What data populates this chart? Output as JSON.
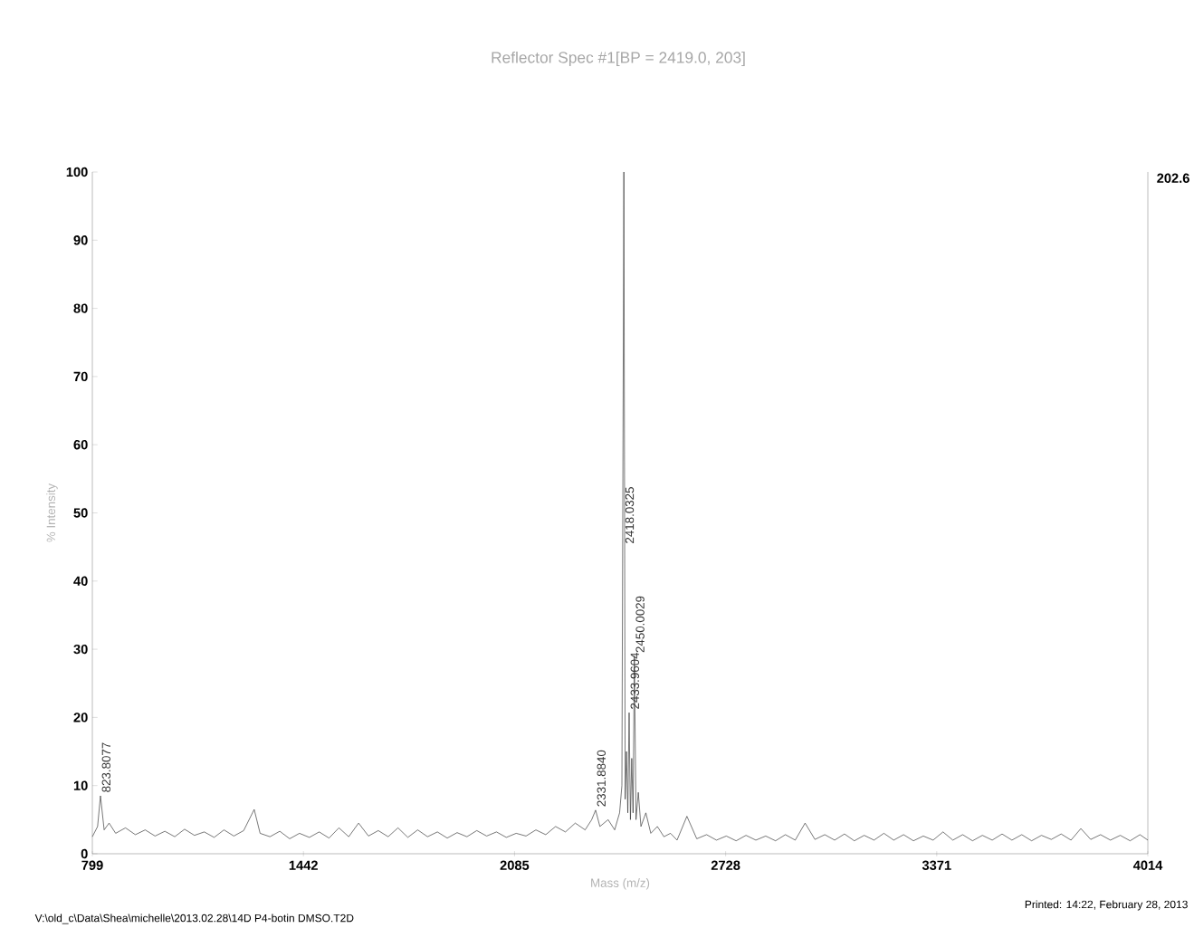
{
  "chart_data": {
    "type": "line",
    "subtitle": "Reflector Spec #1[BP = 2419.0, 203]",
    "xlabel": "Mass (m/z)",
    "ylabel": "% Intensity",
    "color": "#333333",
    "x": [
      799,
      815,
      823.8,
      835,
      850,
      870,
      900,
      930,
      960,
      990,
      1020,
      1050,
      1080,
      1110,
      1140,
      1170,
      1200,
      1230,
      1260,
      1292,
      1310,
      1340,
      1370,
      1400,
      1430,
      1460,
      1490,
      1520,
      1550,
      1580,
      1610,
      1640,
      1670,
      1700,
      1730,
      1760,
      1790,
      1820,
      1850,
      1880,
      1910,
      1940,
      1970,
      2000,
      2030,
      2060,
      2090,
      2120,
      2150,
      2180,
      2210,
      2240,
      2270,
      2300,
      2320,
      2331.9,
      2345,
      2370,
      2390,
      2405,
      2412,
      2418,
      2422,
      2426,
      2430,
      2434,
      2438,
      2442,
      2446,
      2450,
      2455,
      2462,
      2470,
      2485,
      2500,
      2520,
      2540,
      2560,
      2580,
      2610,
      2640,
      2670,
      2700,
      2730,
      2760,
      2790,
      2820,
      2850,
      2880,
      2910,
      2940,
      2970,
      3000,
      3030,
      3060,
      3090,
      3120,
      3150,
      3180,
      3210,
      3240,
      3270,
      3300,
      3330,
      3360,
      3390,
      3420,
      3450,
      3480,
      3510,
      3540,
      3570,
      3600,
      3630,
      3660,
      3690,
      3720,
      3750,
      3780,
      3810,
      3840,
      3870,
      3900,
      3930,
      3960,
      3990,
      4014
    ],
    "values": [
      2.5,
      4,
      8.5,
      3.5,
      4.5,
      3,
      3.8,
      2.8,
      3.5,
      2.6,
      3.3,
      2.5,
      3.6,
      2.7,
      3.2,
      2.4,
      3.5,
      2.6,
      3.4,
      6.5,
      3,
      2.5,
      3.3,
      2.2,
      3,
      2.4,
      3.2,
      2.3,
      3.8,
      2.5,
      4.5,
      2.6,
      3.4,
      2.5,
      3.8,
      2.4,
      3.5,
      2.5,
      3.2,
      2.3,
      3.1,
      2.5,
      3.4,
      2.6,
      3.2,
      2.4,
      3,
      2.6,
      3.5,
      2.8,
      4,
      3.2,
      4.5,
      3.5,
      5,
      6.4,
      4,
      5,
      3.5,
      6,
      10,
      100,
      8,
      15,
      6,
      20.7,
      5,
      14,
      6,
      29,
      5,
      9,
      4,
      6,
      3,
      4,
      2.5,
      3,
      2,
      5.5,
      2.2,
      2.8,
      2,
      2.6,
      1.9,
      2.7,
      2,
      2.6,
      1.9,
      2.8,
      2,
      4.5,
      2.1,
      2.8,
      2,
      2.9,
      1.9,
      2.7,
      2,
      3,
      2,
      2.8,
      1.9,
      2.6,
      2,
      3.2,
      2,
      2.8,
      1.9,
      2.7,
      2,
      2.9,
      2,
      2.8,
      1.9,
      2.7,
      2.1,
      2.9,
      2,
      3.7,
      2.1,
      2.8,
      2,
      2.7,
      1.9,
      2.8,
      2
    ],
    "xlim": [
      799,
      4014
    ],
    "ylim": [
      0,
      100
    ],
    "xticks": [
      799,
      1442,
      2085,
      2728,
      3371,
      4014
    ],
    "yticks": [
      0,
      10,
      20,
      30,
      40,
      50,
      60,
      70,
      80,
      90,
      100
    ],
    "annotations": [
      {
        "text": "823.8077",
        "x": 823.8,
        "y": 8.5
      },
      {
        "text": "2331.8840",
        "x": 2331.9,
        "y": 6.4
      },
      {
        "text": "2418.0325",
        "x": 2418,
        "y": 45
      },
      {
        "text": "2433.9604",
        "x": 2434,
        "y": 20.7
      },
      {
        "text": "2450.0029",
        "x": 2450,
        "y": 29
      },
      "202.6",
      "V:\\old_c\\Data\\Shea\\michelle\\2013.02.28\\14D P4-botin DMSO.T2D",
      "Printed: 14:22, February 28, 2013"
    ]
  }
}
